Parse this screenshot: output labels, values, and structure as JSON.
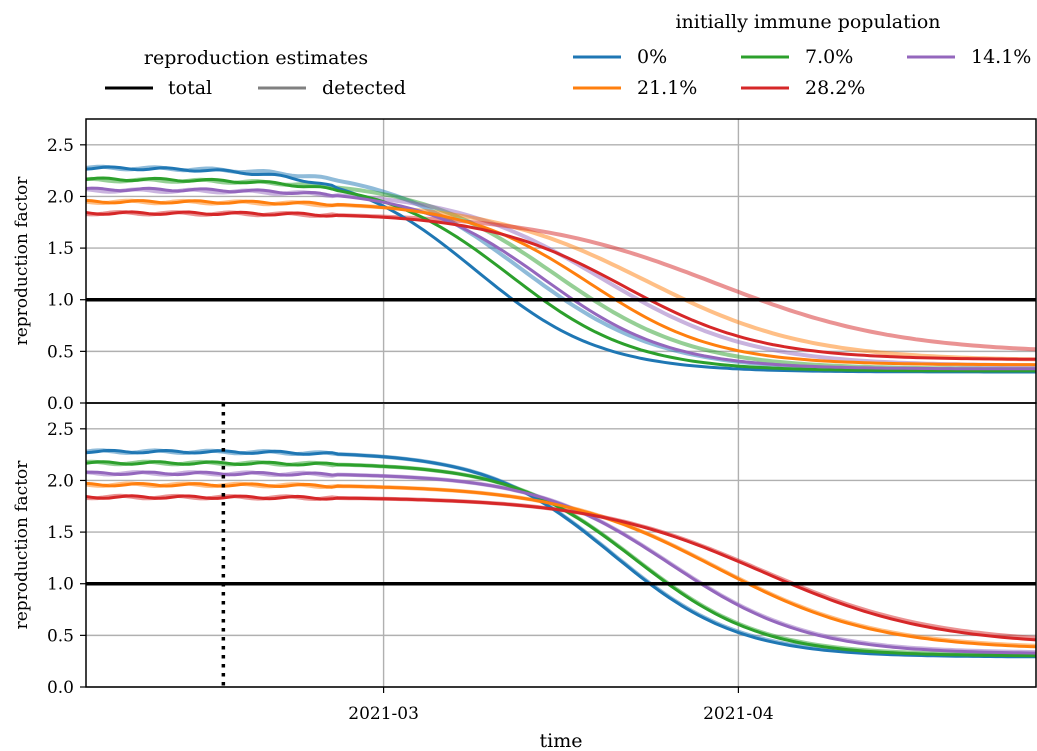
{
  "legends": {
    "estimates": {
      "title": "reproduction estimates",
      "items": [
        {
          "label": "total",
          "color": "#000000"
        },
        {
          "label": "detected",
          "color": "#808080"
        }
      ]
    },
    "immune": {
      "title": "initially immune population",
      "items": [
        {
          "label": "0%",
          "color": "#1f77b4"
        },
        {
          "label": "7.0%",
          "color": "#2ca02c"
        },
        {
          "label": "14.1%",
          "color": "#9467bd"
        },
        {
          "label": "21.1%",
          "color": "#ff7f0e"
        },
        {
          "label": "28.2%",
          "color": "#d62728"
        }
      ]
    }
  },
  "chart_data": [
    {
      "type": "line",
      "panel": "top",
      "ylabel": "reproduction factor",
      "xlabel": "",
      "x_range": [
        "2021-02-03",
        "2021-04-27"
      ],
      "ylim": [
        0,
        2.75
      ],
      "yticks": [
        "0.0",
        "0.5",
        "1.0",
        "1.5",
        "2.0",
        "2.5"
      ],
      "xticks": [
        {
          "date": "2021-03-01",
          "label": "2021-03"
        },
        {
          "date": "2021-04-01",
          "label": "2021-04"
        }
      ],
      "grid": true,
      "reference_line": {
        "y": 1.0,
        "color": "#000000"
      },
      "series": [
        {
          "name": "0%",
          "color": "#1f77b4",
          "kind": "total",
          "start": 2.28,
          "end": 0.3,
          "mid": "2021-03-09",
          "width": 5.5
        },
        {
          "name": "7.0%",
          "color": "#2ca02c",
          "kind": "total",
          "start": 2.17,
          "end": 0.31,
          "mid": "2021-03-12",
          "width": 5.5
        },
        {
          "name": "14.1%",
          "color": "#9467bd",
          "kind": "total",
          "start": 2.07,
          "end": 0.33,
          "mid": "2021-03-15",
          "width": 5.5
        },
        {
          "name": "21.1%",
          "color": "#ff7f0e",
          "kind": "total",
          "start": 1.95,
          "end": 0.37,
          "mid": "2021-03-19",
          "width": 5.5
        },
        {
          "name": "28.2%",
          "color": "#d62728",
          "kind": "total",
          "start": 1.84,
          "end": 0.42,
          "mid": "2021-03-22",
          "width": 6
        },
        {
          "name": "0%",
          "color": "#1f77b4",
          "kind": "detected",
          "start": 2.28,
          "end": 0.32,
          "mid": "2021-03-13",
          "width": 6
        },
        {
          "name": "7.0%",
          "color": "#2ca02c",
          "kind": "detected",
          "start": 2.16,
          "end": 0.33,
          "mid": "2021-03-16",
          "width": 6
        },
        {
          "name": "14.1%",
          "color": "#9467bd",
          "kind": "detected",
          "start": 2.06,
          "end": 0.36,
          "mid": "2021-03-20",
          "width": 6.5
        },
        {
          "name": "21.1%",
          "color": "#ff7f0e",
          "kind": "detected",
          "start": 1.95,
          "end": 0.41,
          "mid": "2021-03-24",
          "width": 7
        },
        {
          "name": "28.2%",
          "color": "#d62728",
          "kind": "detected",
          "start": 1.84,
          "end": 0.48,
          "mid": "2021-03-30",
          "width": 8
        }
      ]
    },
    {
      "type": "line",
      "panel": "bottom",
      "ylabel": "reproduction factor",
      "xlabel": "time",
      "x_range": [
        "2021-02-03",
        "2021-04-27"
      ],
      "ylim": [
        0,
        2.75
      ],
      "yticks": [
        "0.0",
        "0.5",
        "1.0",
        "1.5",
        "2.0",
        "2.5"
      ],
      "xticks": [
        {
          "date": "2021-03-01",
          "label": "2021-03"
        },
        {
          "date": "2021-04-01",
          "label": "2021-04"
        }
      ],
      "grid": true,
      "reference_line": {
        "y": 1.0,
        "color": "#000000"
      },
      "vertical_marker": {
        "date": "2021-02-15",
        "style": "dotted"
      },
      "series": [
        {
          "name": "0%",
          "color": "#1f77b4",
          "kind": "total",
          "start": 2.28,
          "end": 0.29,
          "mid": "2021-03-21",
          "width": 5.5
        },
        {
          "name": "7.0%",
          "color": "#2ca02c",
          "kind": "total",
          "start": 2.17,
          "end": 0.3,
          "mid": "2021-03-23",
          "width": 5.5
        },
        {
          "name": "14.1%",
          "color": "#9467bd",
          "kind": "total",
          "start": 2.07,
          "end": 0.32,
          "mid": "2021-03-26",
          "width": 6
        },
        {
          "name": "21.1%",
          "color": "#ff7f0e",
          "kind": "total",
          "start": 1.96,
          "end": 0.36,
          "mid": "2021-03-30",
          "width": 7
        },
        {
          "name": "28.2%",
          "color": "#d62728",
          "kind": "total",
          "start": 1.84,
          "end": 0.4,
          "mid": "2021-04-03",
          "width": 7.5
        },
        {
          "name": "0%",
          "color": "#1f77b4",
          "kind": "detected",
          "start": 2.28,
          "end": 0.3,
          "mid": "2021-03-21",
          "width": 5.5
        },
        {
          "name": "7.0%",
          "color": "#2ca02c",
          "kind": "detected",
          "start": 2.17,
          "end": 0.31,
          "mid": "2021-03-23",
          "width": 5.5
        },
        {
          "name": "14.1%",
          "color": "#9467bd",
          "kind": "detected",
          "start": 2.07,
          "end": 0.33,
          "mid": "2021-03-26",
          "width": 6
        },
        {
          "name": "21.1%",
          "color": "#ff7f0e",
          "kind": "detected",
          "start": 1.96,
          "end": 0.37,
          "mid": "2021-03-30",
          "width": 7
        },
        {
          "name": "28.2%",
          "color": "#d62728",
          "kind": "detected",
          "start": 1.84,
          "end": 0.42,
          "mid": "2021-04-03",
          "width": 7.5
        }
      ]
    }
  ]
}
